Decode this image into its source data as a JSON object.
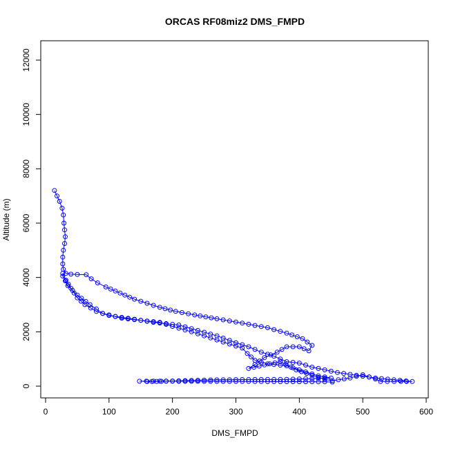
{
  "chart_data": {
    "type": "line",
    "title": "ORCAS RF08miz2 DMS_FMPD",
    "xlabel": "DMS_FMPD",
    "ylabel": "Altitude (m)",
    "xlim": [
      0,
      600
    ],
    "ylim": [
      0,
      12000
    ],
    "x_ticks": [
      0,
      100,
      200,
      300,
      400,
      500,
      600
    ],
    "y_ticks": [
      0,
      2000,
      4000,
      6000,
      8000,
      10000,
      12000
    ],
    "grid": false,
    "colors": {
      "series": "#0000ff",
      "axis": "#000000",
      "background": "#ffffff"
    },
    "marker": "open-circle",
    "path": [
      [
        14,
        7200
      ],
      [
        18,
        7000
      ],
      [
        22,
        6800
      ],
      [
        26,
        6550
      ],
      [
        28,
        6300
      ],
      [
        29,
        6000
      ],
      [
        30,
        5750
      ],
      [
        31,
        5500
      ],
      [
        30,
        5250
      ],
      [
        28,
        5000
      ],
      [
        27,
        4750
      ],
      [
        27,
        4500
      ],
      [
        28,
        4300
      ],
      [
        32,
        4150
      ],
      [
        40,
        4120
      ],
      [
        50,
        4110
      ],
      [
        64,
        4100
      ],
      [
        72,
        3950
      ],
      [
        82,
        3800
      ],
      [
        95,
        3650
      ],
      [
        110,
        3500
      ],
      [
        125,
        3350
      ],
      [
        140,
        3200
      ],
      [
        160,
        3050
      ],
      [
        180,
        2900
      ],
      [
        205,
        2750
      ],
      [
        235,
        2620
      ],
      [
        270,
        2480
      ],
      [
        310,
        2320
      ],
      [
        350,
        2150
      ],
      [
        380,
        1950
      ],
      [
        405,
        1750
      ],
      [
        420,
        1500
      ],
      [
        415,
        1300
      ],
      [
        400,
        1450
      ],
      [
        380,
        1450
      ],
      [
        365,
        1250
      ],
      [
        345,
        1050
      ],
      [
        330,
        800
      ],
      [
        320,
        650
      ],
      [
        345,
        780
      ],
      [
        370,
        900
      ],
      [
        395,
        600
      ],
      [
        420,
        400
      ],
      [
        440,
        250
      ],
      [
        452,
        200
      ],
      [
        480,
        300
      ],
      [
        500,
        420
      ],
      [
        520,
        260
      ],
      [
        528,
        170
      ],
      [
        560,
        175
      ],
      [
        578,
        170
      ],
      [
        520,
        300
      ],
      [
        460,
        500
      ],
      [
        420,
        700
      ],
      [
        400,
        850
      ],
      [
        380,
        900
      ],
      [
        360,
        1100
      ],
      [
        340,
        1250
      ],
      [
        320,
        1450
      ],
      [
        300,
        1600
      ],
      [
        270,
        1850
      ],
      [
        240,
        2050
      ],
      [
        210,
        2250
      ],
      [
        170,
        2350
      ],
      [
        130,
        2500
      ],
      [
        100,
        2600
      ],
      [
        80,
        2750
      ],
      [
        62,
        3000
      ],
      [
        50,
        3250
      ],
      [
        40,
        3600
      ],
      [
        32,
        3900
      ],
      [
        27,
        4150
      ],
      [
        27,
        4050
      ],
      [
        35,
        3700
      ],
      [
        50,
        3350
      ],
      [
        70,
        3000
      ],
      [
        90,
        2680
      ],
      [
        120,
        2500
      ],
      [
        150,
        2420
      ],
      [
        180,
        2350
      ],
      [
        200,
        2200
      ],
      [
        230,
        2000
      ],
      [
        270,
        1700
      ],
      [
        310,
        1400
      ],
      [
        318,
        1200
      ],
      [
        330,
        950
      ],
      [
        350,
        820
      ],
      [
        380,
        750
      ],
      [
        410,
        520
      ],
      [
        430,
        380
      ],
      [
        450,
        300
      ],
      [
        380,
        250
      ],
      [
        300,
        240
      ],
      [
        260,
        230
      ],
      [
        200,
        190
      ],
      [
        170,
        185
      ],
      [
        148,
        180
      ],
      [
        160,
        170
      ],
      [
        175,
        175
      ],
      [
        190,
        180
      ],
      [
        300,
        175
      ],
      [
        380,
        165
      ],
      [
        440,
        160
      ],
      [
        452,
        150
      ]
    ]
  }
}
